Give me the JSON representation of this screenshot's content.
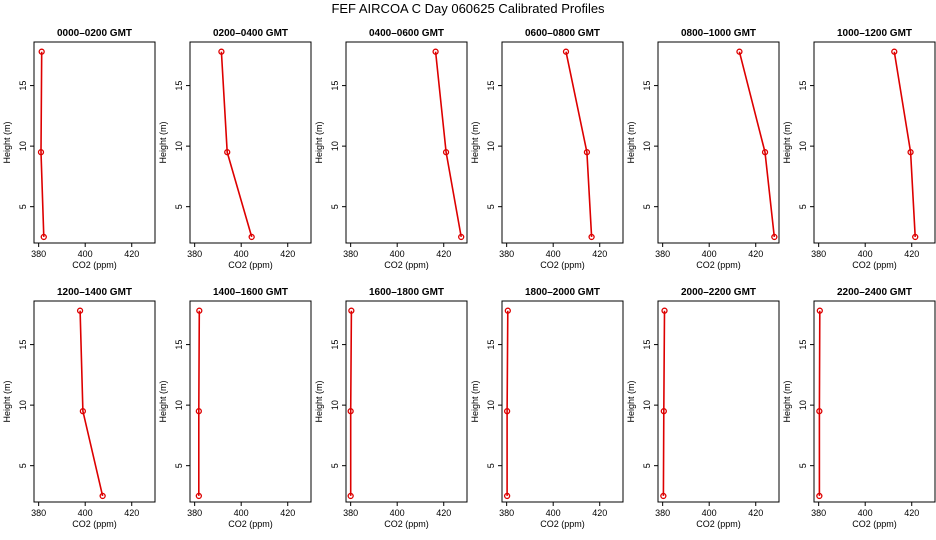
{
  "title": "FEF AIRCOA C  Day 060625  Calibrated Profiles",
  "colors": {
    "series": "#dd0000",
    "axis": "#000000"
  },
  "chart_data": [
    {
      "type": "line",
      "title": "0000–0200 GMT",
      "xlabel": "CO2 (ppm)",
      "ylabel": "Height (m)",
      "xlim": [
        378,
        430
      ],
      "ylim": [
        2,
        18.6
      ],
      "xticks": [
        380,
        400,
        420
      ],
      "yticks": [
        5,
        10,
        15
      ],
      "points": [
        {
          "x": 381.3,
          "y": 17.8
        },
        {
          "x": 381.0,
          "y": 9.5
        },
        {
          "x": 382.2,
          "y": 2.5
        }
      ]
    },
    {
      "type": "line",
      "title": "0200–0400 GMT",
      "xlabel": "CO2 (ppm)",
      "ylabel": "Height (m)",
      "xlim": [
        378,
        430
      ],
      "ylim": [
        2,
        18.6
      ],
      "xticks": [
        380,
        400,
        420
      ],
      "yticks": [
        5,
        10,
        15
      ],
      "points": [
        {
          "x": 391.5,
          "y": 17.8
        },
        {
          "x": 394.0,
          "y": 9.5
        },
        {
          "x": 404.5,
          "y": 2.5
        }
      ]
    },
    {
      "type": "line",
      "title": "0400–0600 GMT",
      "xlabel": "CO2 (ppm)",
      "ylabel": "Height (m)",
      "xlim": [
        378,
        430
      ],
      "ylim": [
        2,
        18.6
      ],
      "xticks": [
        380,
        400,
        420
      ],
      "yticks": [
        5,
        10,
        15
      ],
      "points": [
        {
          "x": 416.5,
          "y": 17.8
        },
        {
          "x": 421.0,
          "y": 9.5
        },
        {
          "x": 427.5,
          "y": 2.5
        }
      ]
    },
    {
      "type": "line",
      "title": "0600–0800 GMT",
      "xlabel": "CO2 (ppm)",
      "ylabel": "Height (m)",
      "xlim": [
        378,
        430
      ],
      "ylim": [
        2,
        18.6
      ],
      "xticks": [
        380,
        400,
        420
      ],
      "yticks": [
        5,
        10,
        15
      ],
      "points": [
        {
          "x": 405.5,
          "y": 17.8
        },
        {
          "x": 414.5,
          "y": 9.5
        },
        {
          "x": 416.5,
          "y": 2.5
        }
      ]
    },
    {
      "type": "line",
      "title": "0800–1000 GMT",
      "xlabel": "CO2 (ppm)",
      "ylabel": "Height (m)",
      "xlim": [
        378,
        430
      ],
      "ylim": [
        2,
        18.6
      ],
      "xticks": [
        380,
        400,
        420
      ],
      "yticks": [
        5,
        10,
        15
      ],
      "points": [
        {
          "x": 413.0,
          "y": 17.8
        },
        {
          "x": 424.0,
          "y": 9.5
        },
        {
          "x": 428.0,
          "y": 2.5
        }
      ]
    },
    {
      "type": "line",
      "title": "1000–1200 GMT",
      "xlabel": "CO2 (ppm)",
      "ylabel": "Height (m)",
      "xlim": [
        378,
        430
      ],
      "ylim": [
        2,
        18.6
      ],
      "xticks": [
        380,
        400,
        420
      ],
      "yticks": [
        5,
        10,
        15
      ],
      "points": [
        {
          "x": 412.5,
          "y": 17.8
        },
        {
          "x": 419.5,
          "y": 9.5
        },
        {
          "x": 421.5,
          "y": 2.5
        }
      ]
    },
    {
      "type": "line",
      "title": "1200–1400 GMT",
      "xlabel": "CO2 (ppm)",
      "ylabel": "Height (m)",
      "xlim": [
        378,
        430
      ],
      "ylim": [
        2,
        18.6
      ],
      "xticks": [
        380,
        400,
        420
      ],
      "yticks": [
        5,
        10,
        15
      ],
      "points": [
        {
          "x": 397.8,
          "y": 17.8
        },
        {
          "x": 399.0,
          "y": 9.5
        },
        {
          "x": 407.5,
          "y": 2.5
        }
      ]
    },
    {
      "type": "line",
      "title": "1400–1600 GMT",
      "xlabel": "CO2 (ppm)",
      "ylabel": "Height (m)",
      "xlim": [
        378,
        430
      ],
      "ylim": [
        2,
        18.6
      ],
      "xticks": [
        380,
        400,
        420
      ],
      "yticks": [
        5,
        10,
        15
      ],
      "points": [
        {
          "x": 382.0,
          "y": 17.8
        },
        {
          "x": 381.8,
          "y": 9.5
        },
        {
          "x": 381.8,
          "y": 2.5
        }
      ]
    },
    {
      "type": "line",
      "title": "1600–1800 GMT",
      "xlabel": "CO2 (ppm)",
      "ylabel": "Height (m)",
      "xlim": [
        378,
        430
      ],
      "ylim": [
        2,
        18.6
      ],
      "xticks": [
        380,
        400,
        420
      ],
      "yticks": [
        5,
        10,
        15
      ],
      "points": [
        {
          "x": 380.3,
          "y": 17.8
        },
        {
          "x": 380.0,
          "y": 9.5
        },
        {
          "x": 380.0,
          "y": 2.5
        }
      ]
    },
    {
      "type": "line",
      "title": "1800–2000 GMT",
      "xlabel": "CO2 (ppm)",
      "ylabel": "Height (m)",
      "xlim": [
        378,
        430
      ],
      "ylim": [
        2,
        18.6
      ],
      "xticks": [
        380,
        400,
        420
      ],
      "yticks": [
        5,
        10,
        15
      ],
      "points": [
        {
          "x": 380.5,
          "y": 17.8
        },
        {
          "x": 380.2,
          "y": 9.5
        },
        {
          "x": 380.2,
          "y": 2.5
        }
      ]
    },
    {
      "type": "line",
      "title": "2000–2200 GMT",
      "xlabel": "CO2 (ppm)",
      "ylabel": "Height (m)",
      "xlim": [
        378,
        430
      ],
      "ylim": [
        2,
        18.6
      ],
      "xticks": [
        380,
        400,
        420
      ],
      "yticks": [
        5,
        10,
        15
      ],
      "points": [
        {
          "x": 380.8,
          "y": 17.8
        },
        {
          "x": 380.5,
          "y": 9.5
        },
        {
          "x": 380.3,
          "y": 2.5
        }
      ]
    },
    {
      "type": "line",
      "title": "2200–2400 GMT",
      "xlabel": "CO2 (ppm)",
      "ylabel": "Height (m)",
      "xlim": [
        378,
        430
      ],
      "ylim": [
        2,
        18.6
      ],
      "xticks": [
        380,
        400,
        420
      ],
      "yticks": [
        5,
        10,
        15
      ],
      "points": [
        {
          "x": 380.5,
          "y": 17.8
        },
        {
          "x": 380.3,
          "y": 9.5
        },
        {
          "x": 380.3,
          "y": 2.5
        }
      ]
    }
  ]
}
